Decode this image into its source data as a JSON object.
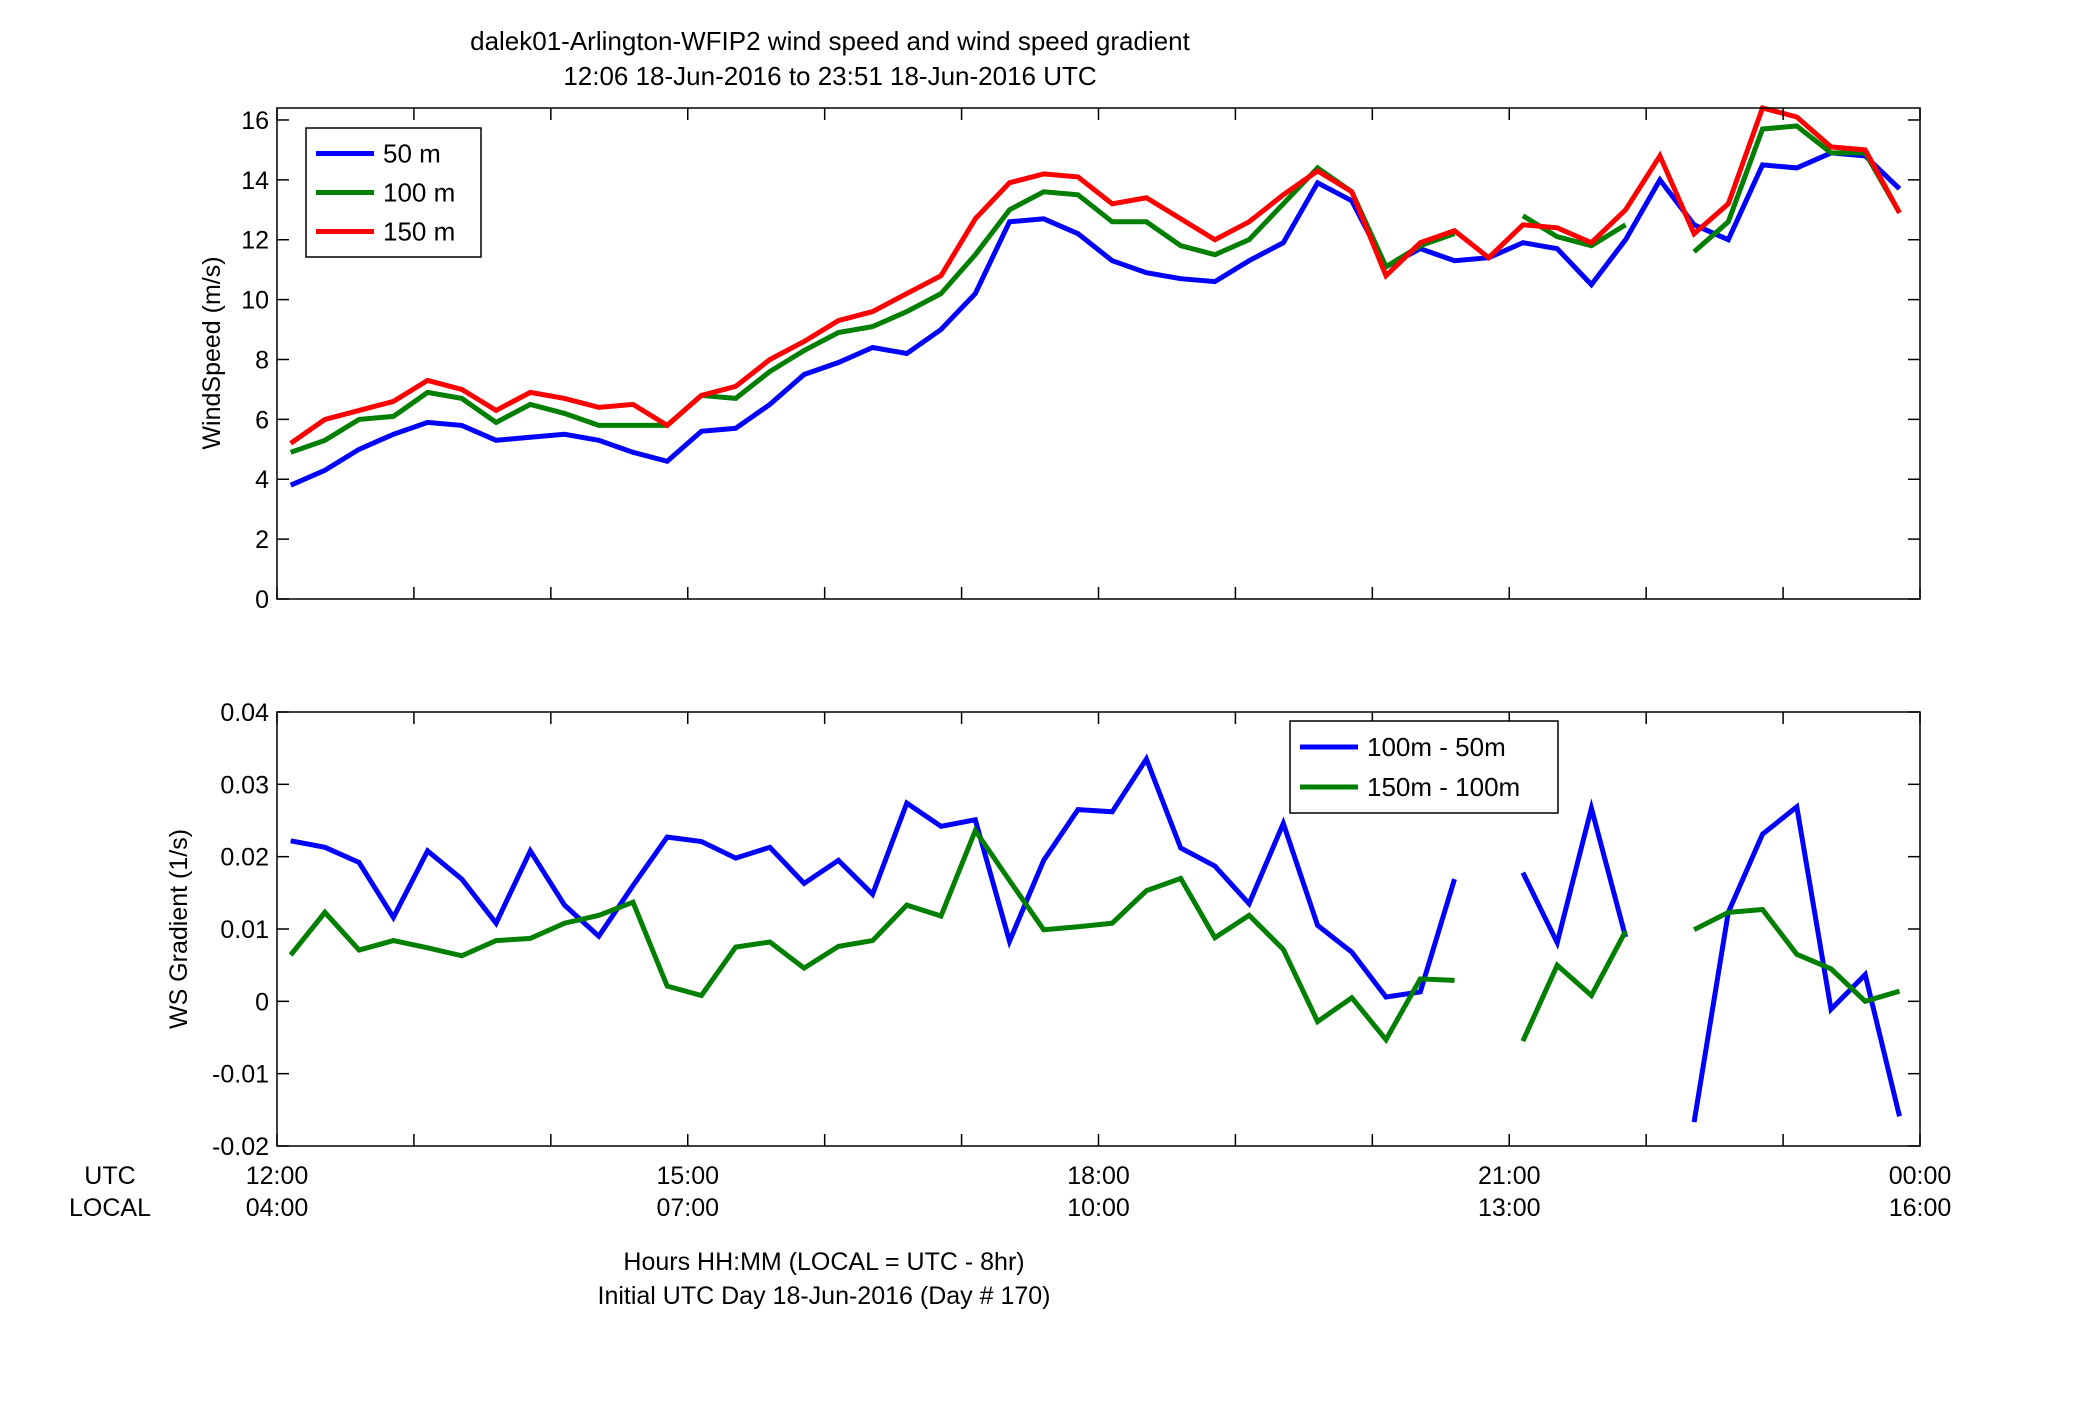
{
  "figure": {
    "title_line1": "dalek01-Arlington-WFIP2  wind speed and wind speed gradient",
    "title_line2": "12:06 18-Jun-2016 to 23:51 18-Jun-2016  UTC",
    "xlabel_line1": "Hours HH:MM  (LOCAL = UTC - 8hr)",
    "xlabel_line2": "Initial UTC Day 18-Jun-2016 (Day # 170)",
    "utc_label": "UTC",
    "local_label": "LOCAL",
    "x_ticks_utc": [
      "12:00",
      "15:00",
      "18:00",
      "21:00",
      "00:00"
    ],
    "x_ticks_local": [
      "04:00",
      "07:00",
      "10:00",
      "13:00",
      "16:00"
    ],
    "colors": {
      "blue": "#0000ff",
      "green": "#007f00",
      "red": "#ff0000"
    }
  },
  "chart_data": [
    {
      "type": "line",
      "ylabel": "WindSpeed (m/s)",
      "xlim": [
        12.0,
        24.0
      ],
      "ylim": [
        0,
        16.4
      ],
      "yticks": [
        0,
        2,
        4,
        6,
        8,
        10,
        12,
        14,
        16
      ],
      "grid": false,
      "legend_position": "top-left",
      "x": [
        12.1,
        12.35,
        12.6,
        12.85,
        13.1,
        13.35,
        13.6,
        13.85,
        14.1,
        14.35,
        14.6,
        14.85,
        15.1,
        15.35,
        15.6,
        15.85,
        16.1,
        16.35,
        16.6,
        16.85,
        17.1,
        17.35,
        17.6,
        17.85,
        18.1,
        18.35,
        18.6,
        18.85,
        19.1,
        19.35,
        19.6,
        19.85,
        20.1,
        20.35,
        20.6,
        20.85,
        21.1,
        21.35,
        21.6,
        21.85,
        22.1,
        22.35,
        22.6,
        22.85,
        23.1,
        23.35,
        23.6,
        23.85
      ],
      "series": [
        {
          "name": "50 m",
          "color": "#0000ff",
          "values": [
            3.8,
            4.3,
            5.0,
            5.5,
            5.9,
            5.8,
            5.3,
            5.4,
            5.5,
            5.3,
            4.9,
            4.6,
            5.6,
            5.7,
            6.5,
            7.5,
            7.9,
            8.4,
            8.2,
            9.0,
            10.2,
            12.6,
            12.7,
            12.2,
            11.3,
            10.9,
            10.7,
            10.6,
            11.3,
            11.9,
            13.9,
            13.3,
            11.1,
            11.7,
            11.3,
            11.4,
            11.9,
            11.7,
            10.5,
            12.0,
            14.0,
            12.5,
            12.0,
            14.5,
            14.4,
            14.9,
            14.8,
            13.7
          ]
        },
        {
          "name": "100 m",
          "color": "#007f00",
          "values": [
            4.9,
            5.3,
            6.0,
            6.1,
            6.9,
            6.7,
            5.9,
            6.5,
            6.2,
            5.8,
            5.8,
            5.8,
            6.8,
            6.7,
            7.6,
            8.3,
            8.9,
            9.1,
            9.6,
            10.2,
            11.5,
            13.0,
            13.6,
            13.5,
            12.6,
            12.6,
            11.8,
            11.5,
            12.0,
            13.2,
            14.4,
            13.6,
            11.1,
            11.8,
            12.2,
            null,
            12.8,
            12.1,
            11.8,
            12.5,
            null,
            11.6,
            12.6,
            15.7,
            15.8,
            14.9,
            14.9,
            12.9
          ]
        },
        {
          "name": "150 m",
          "color": "#ff0000",
          "values": [
            5.2,
            6.0,
            6.3,
            6.6,
            7.3,
            7.0,
            6.3,
            6.9,
            6.7,
            6.4,
            6.5,
            5.8,
            6.8,
            7.1,
            8.0,
            8.6,
            9.3,
            9.6,
            10.2,
            10.8,
            12.7,
            13.9,
            14.2,
            14.1,
            13.2,
            13.4,
            12.7,
            12.0,
            12.6,
            13.5,
            14.3,
            13.6,
            10.8,
            11.9,
            12.3,
            11.4,
            12.5,
            12.4,
            11.9,
            13.0,
            14.8,
            12.2,
            13.2,
            16.4,
            16.1,
            15.1,
            15.0,
            12.9
          ]
        }
      ]
    },
    {
      "type": "line",
      "ylabel": "WS Gradient (1/s)",
      "xlim": [
        12.0,
        24.0
      ],
      "ylim": [
        -0.02,
        0.04
      ],
      "yticks": [
        -0.02,
        -0.01,
        0,
        0.01,
        0.02,
        0.03,
        0.04
      ],
      "ytick_labels": [
        "-0.02",
        "-0.01",
        "0",
        "0.01",
        "0.02",
        "0.03",
        "0.04"
      ],
      "grid": false,
      "legend_position": "top-right",
      "x": [
        12.1,
        12.35,
        12.6,
        12.85,
        13.1,
        13.35,
        13.6,
        13.85,
        14.1,
        14.35,
        14.6,
        14.85,
        15.1,
        15.35,
        15.6,
        15.85,
        16.1,
        16.35,
        16.6,
        16.85,
        17.1,
        17.35,
        17.6,
        17.85,
        18.1,
        18.35,
        18.6,
        18.85,
        19.1,
        19.35,
        19.6,
        19.85,
        20.1,
        20.35,
        20.6,
        20.85,
        21.1,
        21.35,
        21.6,
        21.85,
        22.1,
        22.35,
        22.6,
        22.85,
        23.1,
        23.35,
        23.6,
        23.85
      ],
      "series": [
        {
          "name": "100m - 50m",
          "color": "#0000ff",
          "values": [
            0.0222,
            0.0213,
            0.0192,
            0.0116,
            0.0208,
            0.0169,
            0.0108,
            0.0208,
            0.0133,
            0.009,
            0.016,
            0.0227,
            0.0221,
            0.0198,
            0.0213,
            0.0163,
            0.0195,
            0.0148,
            0.0274,
            0.0242,
            0.0251,
            0.0083,
            0.0195,
            0.0265,
            0.0262,
            0.0335,
            0.0212,
            0.0187,
            0.0135,
            0.0246,
            0.0105,
            0.0068,
            0.0006,
            0.0013,
            0.0169,
            null,
            0.0178,
            0.0081,
            0.0267,
            0.0089,
            null,
            -0.0167,
            0.0123,
            0.0231,
            0.0269,
            -0.0011,
            0.0037,
            -0.0159
          ]
        },
        {
          "name": "150m - 100m",
          "color": "#007f00",
          "values": [
            0.0064,
            0.0123,
            0.0071,
            0.0084,
            0.0074,
            0.0063,
            0.0084,
            0.0087,
            0.0108,
            0.0119,
            0.0137,
            0.0021,
            0.0008,
            0.0075,
            0.0082,
            0.0046,
            0.0076,
            0.0084,
            0.0133,
            0.0118,
            0.0236,
            0.0167,
            0.0099,
            0.0103,
            0.0108,
            0.0153,
            0.017,
            0.0088,
            0.0119,
            0.0072,
            -0.0028,
            0.0005,
            -0.0053,
            0.0031,
            0.0029,
            null,
            -0.0055,
            0.005,
            0.0008,
            0.0097,
            null,
            0.0099,
            0.0123,
            0.0127,
            0.0065,
            0.0045,
            0.0,
            0.0014
          ]
        }
      ]
    }
  ]
}
